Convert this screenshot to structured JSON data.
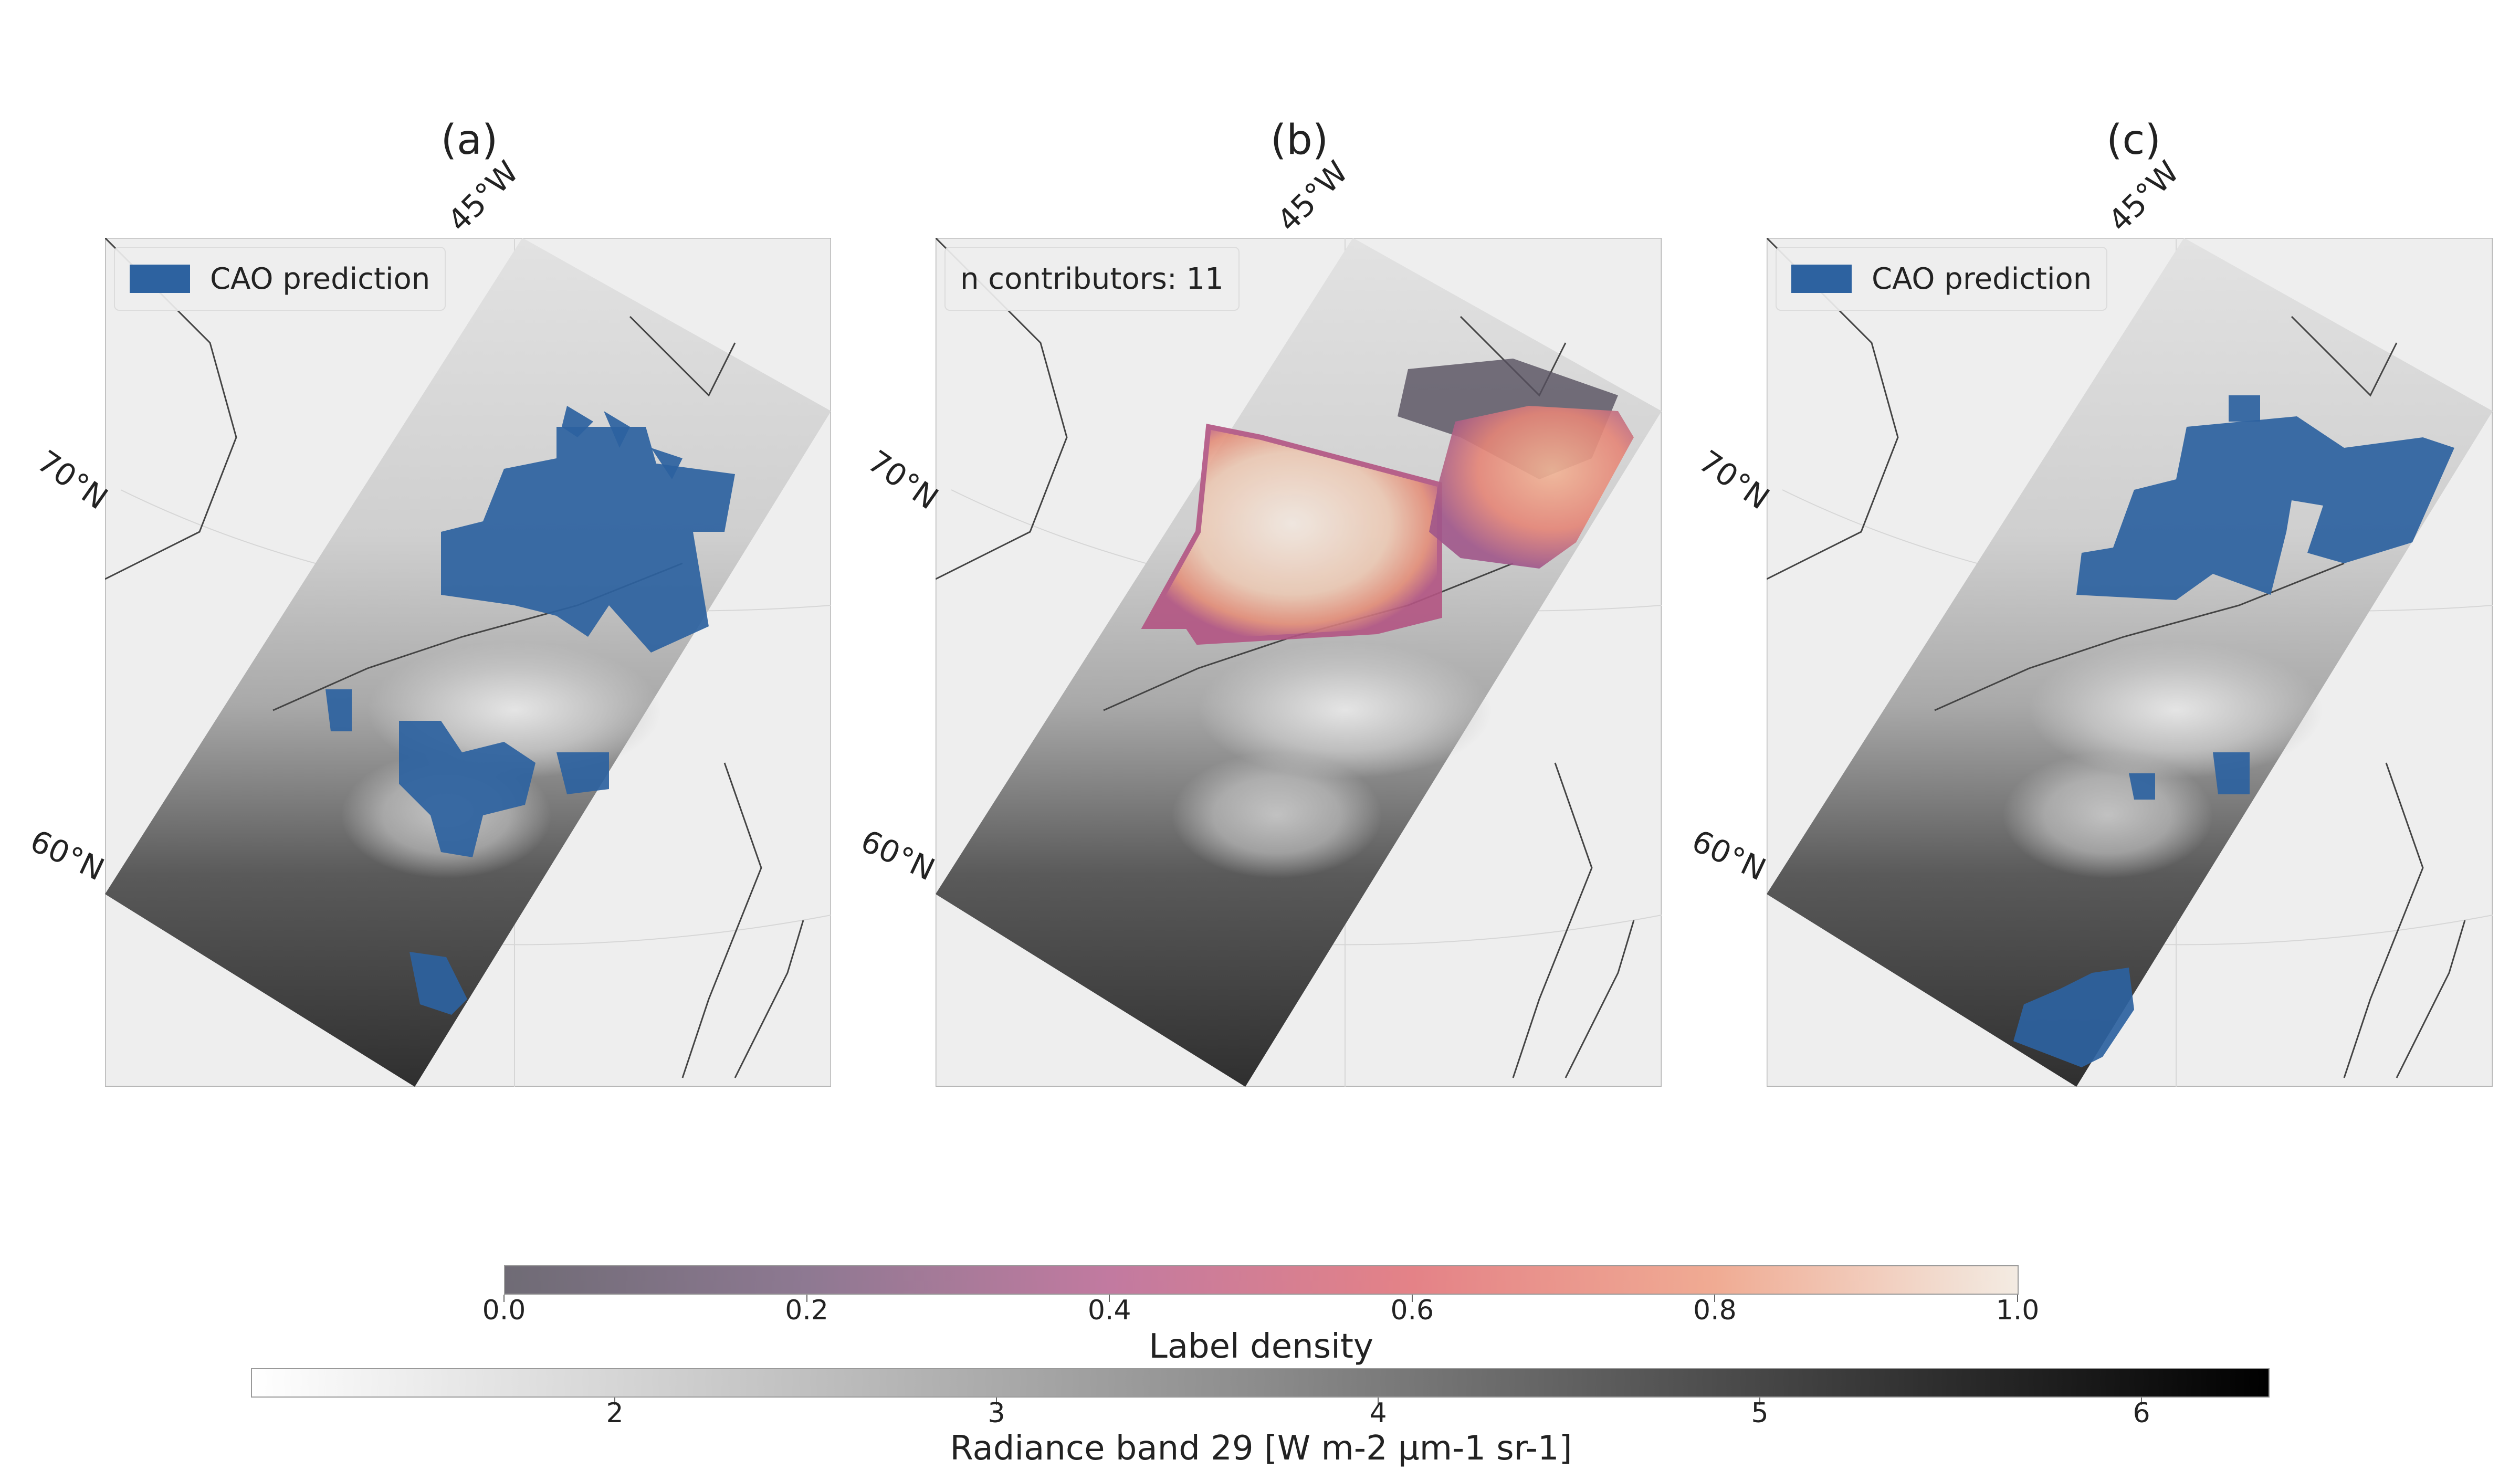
{
  "panels": [
    {
      "title": "(a)",
      "legend": "CAO prediction"
    },
    {
      "title": "(b)",
      "legend": "n contributors: 11"
    },
    {
      "title": "(c)",
      "legend": "CAO prediction"
    }
  ],
  "axis_labels": {
    "lon": "45°W",
    "lat_high": "70°N",
    "lat_low": "60°N"
  },
  "colors": {
    "prediction": "#2d62a0",
    "background": "#eeeeee"
  },
  "colorbar_density": {
    "label": "Label density",
    "ticks": [
      "0.0",
      "0.2",
      "0.4",
      "0.6",
      "0.8",
      "1.0"
    ],
    "range": [
      0.0,
      1.0
    ]
  },
  "colorbar_radiance": {
    "label": "Radiance band 29 [W m-2 µm-1 sr-1]",
    "ticks": [
      "2",
      "3",
      "4",
      "5",
      "6"
    ]
  }
}
